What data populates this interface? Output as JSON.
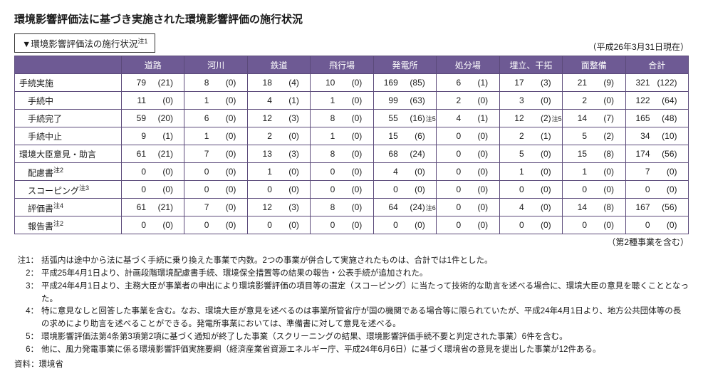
{
  "title": "環境影響評価法に基づき実施された環境影響評価の施行状況",
  "subtitle": "▼環境影響評価法の施行状況",
  "subtitle_note": "注1",
  "asof": "（平成26年3月31日現在）",
  "footnote_right": "（第2種事業を含む）",
  "columns": [
    "道路",
    "河川",
    "鉄道",
    "飛行場",
    "発電所",
    "処分場",
    "埋立、干拓",
    "面整備",
    "合計"
  ],
  "rows": [
    {
      "label": "手続実施",
      "indent": false,
      "note": "",
      "cells": [
        {
          "v": "79",
          "p": "(21)"
        },
        {
          "v": "8",
          "p": "(0)"
        },
        {
          "v": "18",
          "p": "(4)"
        },
        {
          "v": "10",
          "p": "(0)"
        },
        {
          "v": "169",
          "p": "(85)"
        },
        {
          "v": "6",
          "p": "(1)"
        },
        {
          "v": "17",
          "p": "(3)"
        },
        {
          "v": "21",
          "p": "(9)"
        },
        {
          "v": "321",
          "p": "(122)"
        }
      ]
    },
    {
      "label": "手続中",
      "indent": true,
      "note": "",
      "cells": [
        {
          "v": "11",
          "p": "(0)"
        },
        {
          "v": "1",
          "p": "(0)"
        },
        {
          "v": "4",
          "p": "(1)"
        },
        {
          "v": "1",
          "p": "(0)"
        },
        {
          "v": "99",
          "p": "(63)"
        },
        {
          "v": "2",
          "p": "(0)"
        },
        {
          "v": "3",
          "p": "(0)"
        },
        {
          "v": "2",
          "p": "(0)"
        },
        {
          "v": "122",
          "p": "(64)"
        }
      ]
    },
    {
      "label": "手続完了",
      "indent": true,
      "note": "",
      "cells": [
        {
          "v": "59",
          "p": "(20)"
        },
        {
          "v": "6",
          "p": "(0)"
        },
        {
          "v": "12",
          "p": "(3)"
        },
        {
          "v": "8",
          "p": "(0)"
        },
        {
          "v": "55",
          "p": "(16)",
          "n": "注5"
        },
        {
          "v": "4",
          "p": "(1)"
        },
        {
          "v": "12",
          "p": "(2)",
          "n": "注5"
        },
        {
          "v": "14",
          "p": "(7)"
        },
        {
          "v": "165",
          "p": "(48)"
        }
      ]
    },
    {
      "label": "手続中止",
      "indent": true,
      "note": "",
      "cells": [
        {
          "v": "9",
          "p": "(1)"
        },
        {
          "v": "1",
          "p": "(0)"
        },
        {
          "v": "2",
          "p": "(0)"
        },
        {
          "v": "1",
          "p": "(0)"
        },
        {
          "v": "15",
          "p": "(6)"
        },
        {
          "v": "0",
          "p": "(0)"
        },
        {
          "v": "2",
          "p": "(1)"
        },
        {
          "v": "5",
          "p": "(2)"
        },
        {
          "v": "34",
          "p": "(10)"
        }
      ]
    },
    {
      "label": "環境大臣意見・助言",
      "indent": false,
      "note": "",
      "cells": [
        {
          "v": "61",
          "p": "(21)"
        },
        {
          "v": "7",
          "p": "(0)"
        },
        {
          "v": "13",
          "p": "(3)"
        },
        {
          "v": "8",
          "p": "(0)"
        },
        {
          "v": "68",
          "p": "(24)"
        },
        {
          "v": "0",
          "p": "(0)"
        },
        {
          "v": "5",
          "p": "(0)"
        },
        {
          "v": "15",
          "p": "(8)"
        },
        {
          "v": "174",
          "p": "(56)"
        }
      ]
    },
    {
      "label": "配慮書",
      "indent": true,
      "note": "注2",
      "cells": [
        {
          "v": "0",
          "p": "(0)"
        },
        {
          "v": "0",
          "p": "(0)"
        },
        {
          "v": "1",
          "p": "(0)"
        },
        {
          "v": "0",
          "p": "(0)"
        },
        {
          "v": "4",
          "p": "(0)"
        },
        {
          "v": "0",
          "p": "(0)"
        },
        {
          "v": "1",
          "p": "(0)"
        },
        {
          "v": "1",
          "p": "(0)"
        },
        {
          "v": "7",
          "p": "(0)"
        }
      ]
    },
    {
      "label": "スコーピング",
      "indent": true,
      "note": "注3",
      "cells": [
        {
          "v": "0",
          "p": "(0)"
        },
        {
          "v": "0",
          "p": "(0)"
        },
        {
          "v": "0",
          "p": "(0)"
        },
        {
          "v": "0",
          "p": "(0)"
        },
        {
          "v": "0",
          "p": "(0)"
        },
        {
          "v": "0",
          "p": "(0)"
        },
        {
          "v": "0",
          "p": "(0)"
        },
        {
          "v": "0",
          "p": "(0)"
        },
        {
          "v": "0",
          "p": "(0)"
        }
      ]
    },
    {
      "label": "評価書",
      "indent": true,
      "note": "注4",
      "cells": [
        {
          "v": "61",
          "p": "(21)"
        },
        {
          "v": "7",
          "p": "(0)"
        },
        {
          "v": "12",
          "p": "(3)"
        },
        {
          "v": "8",
          "p": "(0)"
        },
        {
          "v": "64",
          "p": "(24)",
          "n": "注6"
        },
        {
          "v": "0",
          "p": "(0)"
        },
        {
          "v": "4",
          "p": "(0)"
        },
        {
          "v": "14",
          "p": "(8)"
        },
        {
          "v": "167",
          "p": "(56)"
        }
      ]
    },
    {
      "label": "報告書",
      "indent": true,
      "note": "注2",
      "cells": [
        {
          "v": "0",
          "p": "(0)"
        },
        {
          "v": "0",
          "p": "(0)"
        },
        {
          "v": "0",
          "p": "(0)"
        },
        {
          "v": "0",
          "p": "(0)"
        },
        {
          "v": "0",
          "p": "(0)"
        },
        {
          "v": "0",
          "p": "(0)"
        },
        {
          "v": "0",
          "p": "(0)"
        },
        {
          "v": "0",
          "p": "(0)"
        },
        {
          "v": "0",
          "p": "(0)"
        }
      ]
    }
  ],
  "notes_label": "注",
  "notes": [
    {
      "num": "1：",
      "text": "括弧内は途中から法に基づく手続に乗り換えた事業で内数。2つの事業が併合して実施されたものは、合計では1件とした。"
    },
    {
      "num": "2：",
      "text": "平成25年4月1日より、計画段階環境配慮書手続、環境保全措置等の結果の報告・公表手続が追加された。"
    },
    {
      "num": "3：",
      "text": "平成24年4月1日より、主務大臣が事業者の申出により環境影響評価の項目等の選定（スコーピング）に当たって技術的な助言を述べる場合に、環境大臣の意見を聴くこととなった。"
    },
    {
      "num": "4：",
      "text": "特に意見なしと回答した事業を含む。なお、環境大臣が意見を述べるのは事業所管省庁が国の機関である場合等に限られていたが、平成24年4月1日より、地方公共団体等の長の求めにより助言を述べることができる。発電所事業においては、準備書に対して意見を述べる。"
    },
    {
      "num": "5：",
      "text": "環境影響評価法第4条第3項第2項に基づく通知が終了した事業（スクリーニングの結果、環境影響評価手続不要と判定された事業）6件を含む。"
    },
    {
      "num": "6：",
      "text": "他に、風力発電事業に係る環境影響評価実施要綱（経済産業省資源エネルギー庁、平成24年6月6日）に基づく環境省の意見を提出した事業が12件ある。"
    }
  ],
  "source_label": "資料：",
  "source_value": "環境省",
  "colors": {
    "header_bg": "#6e5a94",
    "header_fg": "#ffffff",
    "border": "#5b4a7a",
    "background": "#ffffff",
    "text": "#1a1a1a"
  },
  "col_widths": {
    "label": "150px",
    "data": "auto"
  }
}
